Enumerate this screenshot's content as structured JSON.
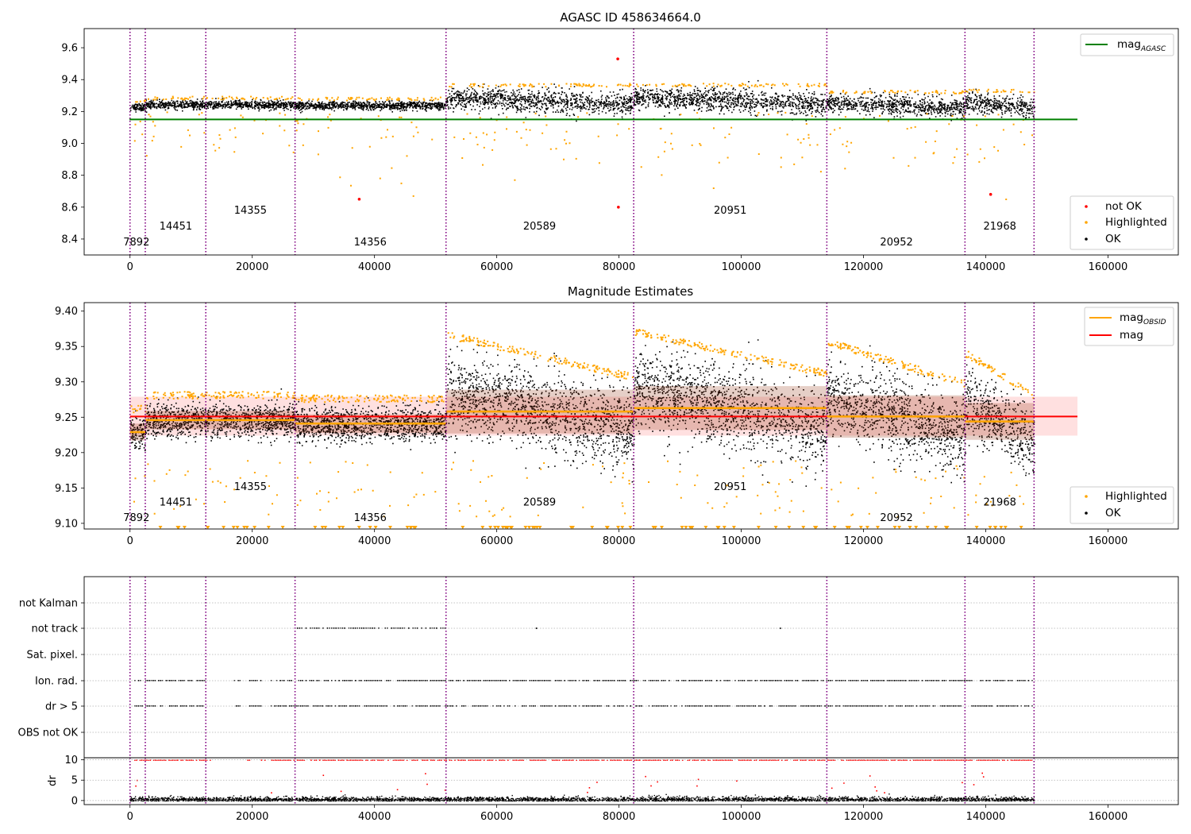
{
  "chart_data": [
    {
      "type": "scatter",
      "title": "AGASC ID 458634664.0",
      "xlim": [
        -7500,
        171500
      ],
      "ylim": [
        8.3,
        9.72
      ],
      "xticks": [
        0,
        20000,
        40000,
        60000,
        80000,
        100000,
        120000,
        140000,
        160000
      ],
      "yticks": [
        8.4,
        8.6,
        8.8,
        9.0,
        9.2,
        9.4,
        9.6
      ],
      "obsid_boundaries": [
        0,
        2500,
        12400,
        27000,
        51700,
        82400,
        114000,
        136600,
        147900
      ],
      "obsid_labels": [
        {
          "text": "7892",
          "x": 1050,
          "y": 8.36
        },
        {
          "text": "14451",
          "x": 7500,
          "y": 8.46
        },
        {
          "text": "14355",
          "x": 19700,
          "y": 8.56
        },
        {
          "text": "14356",
          "x": 39300,
          "y": 8.36
        },
        {
          "text": "20589",
          "x": 67000,
          "y": 8.46
        },
        {
          "text": "20951",
          "x": 98200,
          "y": 8.56
        },
        {
          "text": "20952",
          "x": 125400,
          "y": 8.36
        },
        {
          "text": "21968",
          "x": 142300,
          "y": 8.46
        }
      ],
      "mag_agasc": 9.15,
      "segments": [
        {
          "x0": 0,
          "x1": 2500,
          "mean": 9.23,
          "spread": 0.012
        },
        {
          "x0": 2500,
          "x1": 12400,
          "mean": 9.245,
          "spread": 0.013
        },
        {
          "x0": 12400,
          "x1": 27000,
          "mean": 9.245,
          "spread": 0.013
        },
        {
          "x0": 27000,
          "x1": 51700,
          "mean": 9.24,
          "spread": 0.013
        },
        {
          "x0": 51700,
          "x1": 82400,
          "mean": 9.268,
          "spread": 0.035
        },
        {
          "x0": 82400,
          "x1": 114000,
          "mean": 9.27,
          "spread": 0.035
        },
        {
          "x0": 114000,
          "x1": 136600,
          "mean": 9.24,
          "spread": 0.03
        },
        {
          "x0": 136600,
          "x1": 147900,
          "mean": 9.245,
          "spread": 0.03
        }
      ],
      "not_ok_points": [
        [
          79800,
          9.53
        ],
        [
          79900,
          8.6
        ],
        [
          37500,
          8.65
        ],
        [
          140800,
          8.68
        ]
      ],
      "legend": {
        "entries": [
          "mag_AGASC",
          "not OK",
          "Highlighted",
          "OK"
        ]
      }
    },
    {
      "type": "scatter",
      "title": "Magnitude Estimates",
      "xlim": [
        -7500,
        171500
      ],
      "ylim": [
        9.092,
        9.412
      ],
      "xticks": [
        0,
        20000,
        40000,
        60000,
        80000,
        100000,
        120000,
        140000,
        160000
      ],
      "yticks": [
        9.1,
        9.15,
        9.2,
        9.25,
        9.3,
        9.35,
        9.4
      ],
      "mag": 9.251,
      "mag_band": [
        9.224,
        9.279
      ],
      "mag_obsid": [
        {
          "x0": 0,
          "x1": 2500,
          "mag": 9.229,
          "std": 0.012
        },
        {
          "x0": 2500,
          "x1": 12400,
          "mag": 9.246,
          "std": 0.013
        },
        {
          "x0": 12400,
          "x1": 27000,
          "mag": 9.246,
          "std": 0.013
        },
        {
          "x0": 27000,
          "x1": 51700,
          "mag": 9.241,
          "std": 0.013
        },
        {
          "x0": 51700,
          "x1": 82400,
          "mag": 9.258,
          "std": 0.031
        },
        {
          "x0": 82400,
          "x1": 114000,
          "mag": 9.263,
          "std": 0.031
        },
        {
          "x0": 114000,
          "x1": 136600,
          "mag": 9.251,
          "std": 0.03
        },
        {
          "x0": 136600,
          "x1": 147900,
          "mag": 9.244,
          "std": 0.026
        }
      ],
      "obsid_labels": [
        {
          "text": "7892",
          "x": 1050,
          "y": 9.103
        },
        {
          "text": "14451",
          "x": 7500,
          "y": 9.125
        },
        {
          "text": "14355",
          "x": 19700,
          "y": 9.147
        },
        {
          "text": "14356",
          "x": 39300,
          "y": 9.103
        },
        {
          "text": "20589",
          "x": 67000,
          "y": 9.125
        },
        {
          "text": "20951",
          "x": 98200,
          "y": 9.147
        },
        {
          "text": "20952",
          "x": 125400,
          "y": 9.103
        },
        {
          "text": "21968",
          "x": 142300,
          "y": 9.125
        }
      ],
      "legend": {
        "entries": [
          "mag_OBSID",
          "mag",
          "Highlighted",
          "OK"
        ]
      }
    },
    {
      "type": "scatter",
      "title": "",
      "xlim": [
        -7500,
        171500
      ],
      "flag_labels": [
        "not Kalman",
        "not track",
        "Sat. pixel.",
        "Ion. rad.",
        "dr > 5",
        "OBS not OK"
      ],
      "dr_ylabel": "dr",
      "dr_yticks": [
        0,
        5,
        10
      ],
      "dr_ylim": [
        -1,
        10.5
      ],
      "xticks": [
        0,
        20000,
        40000,
        60000,
        80000,
        100000,
        120000,
        140000,
        160000
      ]
    }
  ],
  "legend_text": {
    "mag_agasc_base": "mag",
    "mag_agasc_sub": "AGASC",
    "not_ok": "not OK",
    "highlighted": "Highlighted",
    "ok": "OK",
    "mag_obsid_base": "mag",
    "mag_obsid_sub": "OBSID",
    "mag": "mag"
  },
  "colors": {
    "ok": "#000000",
    "highlighted": "#ffa500",
    "not_ok": "#ff0000",
    "agasc_line": "#008000",
    "mag_line": "#ff0000",
    "obsid_line": "#ffa500",
    "boundary": "#800080",
    "band": "#ffcccc",
    "dr_flag": "#ff0000"
  }
}
